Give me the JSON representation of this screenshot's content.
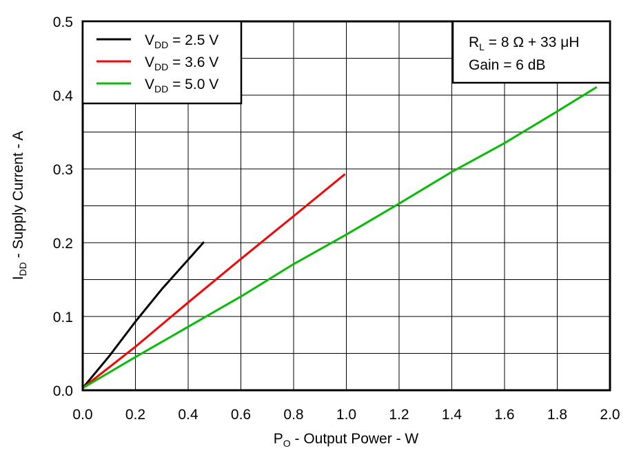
{
  "chart_data": {
    "type": "line",
    "xlabel": {
      "main": "P",
      "sub": "O",
      "rest": " - Output Power - W"
    },
    "ylabel": {
      "main": "I",
      "sub": "DD",
      "rest": " - Supply Current - A"
    },
    "xlim": [
      0,
      2.0
    ],
    "ylim": [
      0,
      0.5
    ],
    "xticks": [
      "0.0",
      "0.2",
      "0.4",
      "0.6",
      "0.8",
      "1.0",
      "1.2",
      "1.4",
      "1.6",
      "1.8",
      "2.0"
    ],
    "yticks": [
      "0.0",
      "0.1",
      "0.2",
      "0.3",
      "0.4",
      "0.5"
    ],
    "grid": true,
    "legend_position": "top-left",
    "series": [
      {
        "name": {
          "main": "V",
          "sub": "DD",
          "rest": " = 2.5 V"
        },
        "color": "#000000",
        "x": [
          0,
          0.1,
          0.2,
          0.3,
          0.4,
          0.46
        ],
        "y": [
          0.003,
          0.046,
          0.093,
          0.137,
          0.177,
          0.201
        ]
      },
      {
        "name": {
          "main": "V",
          "sub": "DD",
          "rest": " = 3.6 V"
        },
        "color": "#ff0000",
        "x": [
          0,
          0.2,
          0.4,
          0.6,
          0.8,
          0.995
        ],
        "y": [
          0.003,
          0.059,
          0.119,
          0.178,
          0.236,
          0.293
        ]
      },
      {
        "name": {
          "main": "V",
          "sub": "DD",
          "rest": " = 5.0 V"
        },
        "color": "#00c000",
        "x": [
          0,
          0.2,
          0.4,
          0.6,
          0.8,
          1.0,
          1.2,
          1.4,
          1.6,
          1.8,
          1.95
        ],
        "y": [
          0.003,
          0.045,
          0.086,
          0.127,
          0.171,
          0.211,
          0.253,
          0.296,
          0.335,
          0.378,
          0.411
        ]
      }
    ],
    "annotation": {
      "line1": {
        "main": "R",
        "sub": "L",
        "rest": " = 8 Ω + 33 μH"
      },
      "line2": "Gain = 6 dB"
    }
  }
}
